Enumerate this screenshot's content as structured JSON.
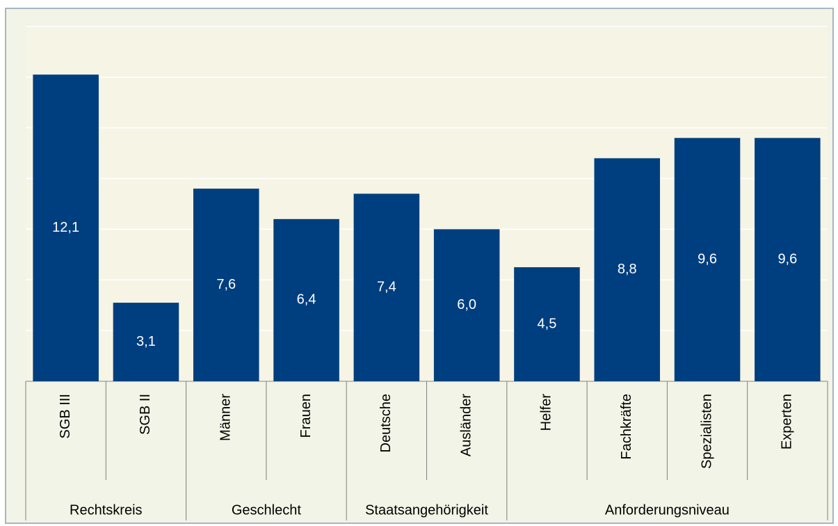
{
  "chart_data": {
    "type": "bar",
    "color": "#003f7f",
    "grid": true,
    "ylim": [
      0,
      14
    ],
    "yticks": [
      0,
      2,
      4,
      6,
      8,
      10,
      12,
      14
    ],
    "groups": [
      {
        "name": "Rechtskreis",
        "categories": [
          "SGB III",
          "SGB II"
        ],
        "values": [
          12.1,
          3.1
        ],
        "value_labels": [
          "12,1",
          "3,1"
        ]
      },
      {
        "name": "Geschlecht",
        "categories": [
          "Männer",
          "Frauen"
        ],
        "values": [
          7.6,
          6.4
        ],
        "value_labels": [
          "7,6",
          "6,4"
        ]
      },
      {
        "name": "Staatsangehörigkeit",
        "categories": [
          "Deutsche",
          "Ausländer"
        ],
        "values": [
          7.4,
          6.0
        ],
        "value_labels": [
          "7,4",
          "6,0"
        ]
      },
      {
        "name": "Anforderungsniveau",
        "categories": [
          "Helfer",
          "Fachkräfte",
          "Spezialisten",
          "Experten"
        ],
        "values": [
          4.5,
          8.8,
          9.6,
          9.6
        ],
        "value_labels": [
          "4,5",
          "8,8",
          "9,6",
          "9,6"
        ]
      }
    ]
  }
}
